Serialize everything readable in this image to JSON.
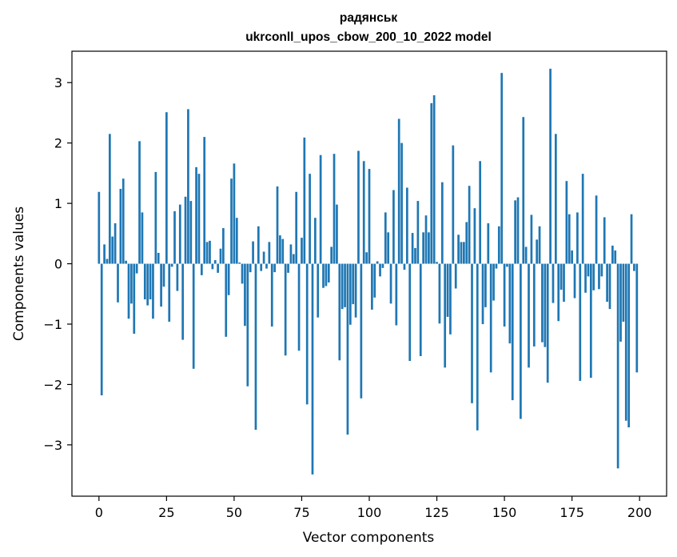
{
  "chart_data": {
    "type": "bar",
    "title": "радянськ",
    "subtitle": "ukrconll_upos_cbow_200_10_2022 model",
    "xlabel": "Vector components",
    "ylabel": "Components values",
    "xlim": [
      -10,
      210
    ],
    "ylim": [
      -3.85,
      3.52
    ],
    "xticks": [
      0,
      25,
      50,
      75,
      100,
      125,
      150,
      175,
      200
    ],
    "xtick_labels": [
      "0",
      "25",
      "50",
      "75",
      "100",
      "125",
      "150",
      "175",
      "200"
    ],
    "yticks": [
      -3,
      -2,
      -1,
      0,
      1,
      2,
      3
    ],
    "ytick_labels": [
      "−3",
      "−2",
      "−1",
      "0",
      "1",
      "2",
      "3"
    ],
    "bar_color": "#1f77b4",
    "bar_width": 0.8,
    "values": [
      1.19,
      -2.18,
      0.32,
      0.08,
      2.15,
      0.45,
      0.67,
      -0.64,
      1.24,
      1.41,
      0.05,
      -0.91,
      -0.66,
      -1.16,
      -0.16,
      2.03,
      0.85,
      -0.59,
      -0.69,
      -0.59,
      -0.91,
      1.52,
      0.18,
      -0.71,
      -0.38,
      2.51,
      -0.96,
      -0.05,
      0.87,
      -0.45,
      0.98,
      -1.26,
      1.11,
      2.56,
      1.04,
      -1.74,
      1.6,
      1.49,
      -0.19,
      2.1,
      0.36,
      0.38,
      -0.09,
      0.06,
      -0.15,
      0.25,
      0.59,
      -1.21,
      -0.52,
      1.41,
      1.66,
      0.76,
      0.02,
      -0.33,
      -1.03,
      -2.03,
      -0.14,
      0.37,
      -2.75,
      0.62,
      -0.12,
      0.2,
      -0.08,
      0.36,
      -1.04,
      -0.14,
      1.28,
      0.47,
      0.41,
      -1.52,
      -0.15,
      0.32,
      0.16,
      1.19,
      -1.44,
      0.43,
      2.09,
      -2.33,
      1.49,
      -3.49,
      0.76,
      -0.89,
      1.8,
      -0.4,
      -0.37,
      -0.31,
      0.28,
      1.82,
      0.98,
      -1.6,
      -0.75,
      -0.72,
      -2.83,
      -1.01,
      -0.67,
      -0.89,
      1.87,
      -2.23,
      1.7,
      0.19,
      1.57,
      -0.76,
      -0.56,
      0.04,
      -0.21,
      -0.07,
      0.85,
      0.52,
      -0.66,
      1.22,
      -1.02,
      2.4,
      2.0,
      -0.1,
      1.26,
      -1.61,
      0.51,
      0.26,
      1.04,
      -1.53,
      0.52,
      0.8,
      0.52,
      2.66,
      2.79,
      0.03,
      -0.99,
      1.35,
      -1.72,
      -0.88,
      -1.17,
      1.96,
      -0.41,
      0.48,
      0.36,
      0.36,
      0.69,
      1.29,
      -2.31,
      0.92,
      -2.76,
      1.7,
      -1.0,
      -0.72,
      0.67,
      -1.8,
      -0.61,
      -0.08,
      0.62,
      3.16,
      -1.04,
      -0.05,
      -1.32,
      -2.26,
      1.05,
      1.1,
      -2.57,
      2.43,
      0.28,
      -1.72,
      0.81,
      -1.37,
      0.4,
      0.62,
      -1.3,
      -1.38,
      -1.97,
      3.23,
      -0.65,
      2.15,
      -0.95,
      -0.43,
      -0.63,
      1.37,
      0.82,
      0.22,
      -0.57,
      0.85,
      -1.94,
      1.49,
      -0.48,
      -0.21,
      -1.89,
      -0.44,
      1.13,
      -0.42,
      -0.21,
      0.77,
      -0.63,
      -0.75,
      0.3,
      0.22,
      -3.39,
      -1.29,
      -0.96,
      -2.6,
      -2.71,
      0.82,
      -0.12,
      -1.8
    ]
  }
}
